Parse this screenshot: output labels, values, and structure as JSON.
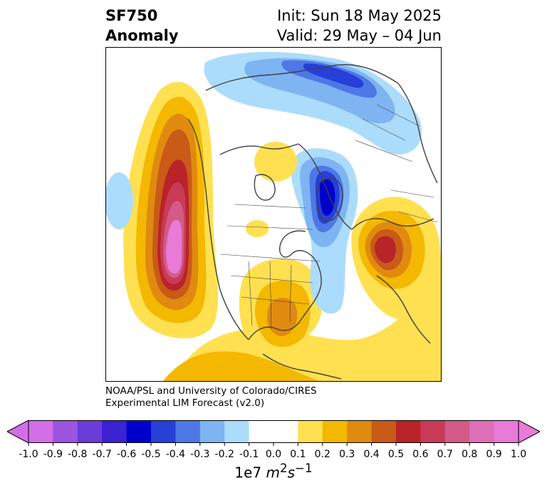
{
  "title": {
    "variable": "SF750",
    "subtitle": "Anomaly",
    "init": "Init: Sun 18 May 2025",
    "valid": "Valid: 29 May – 04 Jun"
  },
  "credit": {
    "line1": "NOAA/PSL and University of Colorado/CIRES",
    "line2": "Experimental LIM Forecast (v2.0)"
  },
  "colorbar": {
    "ticks": [
      "-1.0",
      "-0.9",
      "-0.8",
      "-0.7",
      "-0.6",
      "-0.5",
      "-0.4",
      "-0.3",
      "-0.2",
      "-0.1",
      "0.0",
      "0.1",
      "0.2",
      "0.3",
      "0.4",
      "0.5",
      "0.6",
      "0.7",
      "0.8",
      "0.9",
      "1.0"
    ],
    "colors": [
      "#d36ee8",
      "#9b54e0",
      "#6a3cd8",
      "#3b22d2",
      "#0000cc",
      "#2640d8",
      "#4d78e6",
      "#7eb4f2",
      "#acdcfb",
      "#ffffff",
      "#ffffff",
      "#ffe050",
      "#f4b800",
      "#e08a10",
      "#c95a18",
      "#b82428",
      "#c83a58",
      "#d45a88",
      "#dd70b8",
      "#e87ad8"
    ],
    "extend_low_color": "#d36ee8",
    "extend_high_color": "#e87ad8",
    "units_prefix": "1e7",
    "units_m": "m",
    "units_m_exp": "2",
    "units_s": "s",
    "units_s_exp": "−1"
  }
}
